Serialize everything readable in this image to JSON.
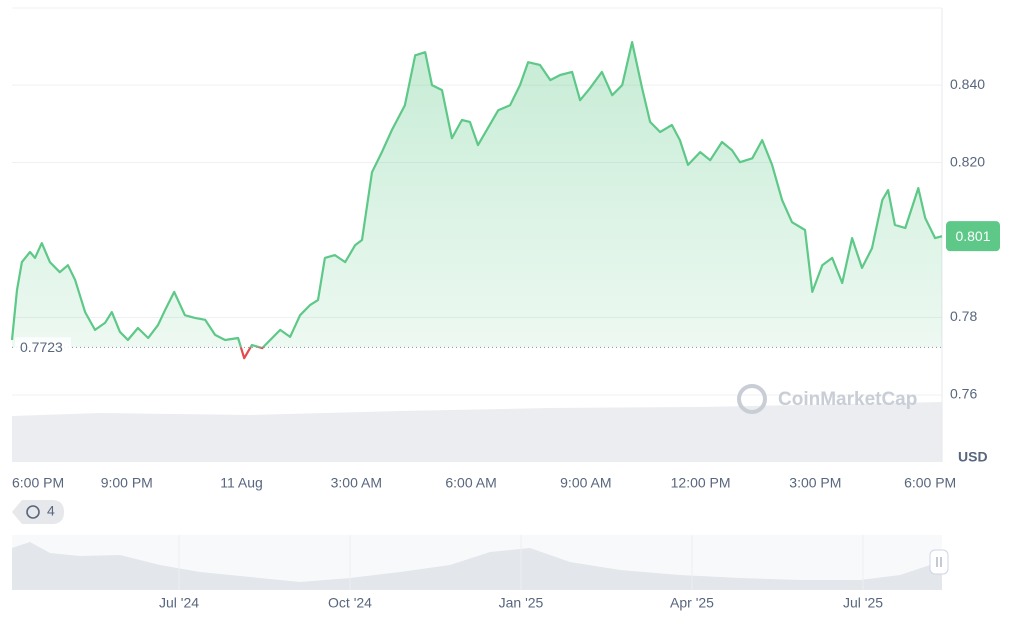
{
  "chart_data": {
    "type": "line",
    "x": [
      0,
      0.13,
      0.26,
      0.47,
      0.6,
      0.78,
      0.99,
      1.25,
      1.46,
      1.65,
      1.91,
      2.17,
      2.43,
      2.61,
      2.82,
      3.03,
      3.29,
      3.56,
      3.82,
      4.0,
      4.24,
      4.52,
      4.78,
      5.05,
      5.31,
      5.57,
      5.91,
      6.07,
      6.27,
      6.54,
      6.75,
      7.01,
      7.27,
      7.53,
      7.79,
      8.0,
      8.18,
      8.44,
      8.71,
      8.97,
      9.15,
      9.41,
      9.67,
      9.93,
      10.27,
      10.54,
      10.8,
      10.98,
      11.24,
      11.5,
      11.76,
      11.97,
      12.18,
      12.44,
      12.71,
      13.02,
      13.28,
      13.49,
      13.8,
      14.07,
      14.33,
      14.64,
      14.85,
      15.11,
      15.42,
      15.69,
      15.95,
      16.21,
      16.47,
      16.68,
      16.94,
      17.25,
      17.46,
      17.67,
      17.99,
      18.25,
      18.56,
      18.82,
      19.03,
      19.35,
      19.61,
      19.87,
      20.13,
      20.39,
      20.73,
      20.92,
      21.18,
      21.44,
      21.7,
      21.96,
      22.22,
      22.48,
      22.75,
      22.9,
      23.08,
      23.35,
      23.69,
      23.87,
      24.13,
      24.31
    ],
    "series": [
      {
        "color": "#5dc887",
        "negative_color": "#e5484d",
        "values": [
          0.7742,
          0.7871,
          0.7943,
          0.7969,
          0.7954,
          0.7992,
          0.7943,
          0.7917,
          0.7935,
          0.7897,
          0.7814,
          0.7768,
          0.7786,
          0.7814,
          0.7763,
          0.7742,
          0.7773,
          0.7747,
          0.7781,
          0.7819,
          0.7866,
          0.7806,
          0.7799,
          0.7794,
          0.7755,
          0.7742,
          0.7747,
          0.7695,
          0.7729,
          0.7721,
          0.7742,
          0.7768,
          0.775,
          0.7806,
          0.7832,
          0.7845,
          0.7954,
          0.7961,
          0.7943,
          0.7987,
          0.8,
          0.8175,
          0.8227,
          0.8284,
          0.8348,
          0.8477,
          0.8485,
          0.84,
          0.8387,
          0.8263,
          0.831,
          0.8305,
          0.8245,
          0.8289,
          0.8335,
          0.8348,
          0.84,
          0.8459,
          0.8452,
          0.8413,
          0.8426,
          0.8434,
          0.8361,
          0.8392,
          0.8434,
          0.8374,
          0.84,
          0.8511,
          0.8392,
          0.8305,
          0.8279,
          0.8297,
          0.8258,
          0.8194,
          0.8227,
          0.8206,
          0.8253,
          0.8232,
          0.8201,
          0.8211,
          0.8258,
          0.8194,
          0.8103,
          0.8046,
          0.8026,
          0.7866,
          0.7935,
          0.7954,
          0.7889,
          0.8005,
          0.7928,
          0.7979,
          0.8103,
          0.8129,
          0.8039,
          0.8031,
          0.8134,
          0.8057,
          0.8005,
          0.801
        ]
      }
    ],
    "xlim": [
      0,
      24.31
    ],
    "xticks": [
      {
        "value": 0,
        "label": "6:00 PM"
      },
      {
        "value": 3,
        "label": "9:00 PM"
      },
      {
        "value": 6,
        "label": "11 Aug"
      },
      {
        "value": 9,
        "label": "3:00 AM"
      },
      {
        "value": 12,
        "label": "6:00 AM"
      },
      {
        "value": 15,
        "label": "9:00 AM"
      },
      {
        "value": 18,
        "label": "12:00 PM"
      },
      {
        "value": 21,
        "label": "3:00 PM"
      },
      {
        "value": 24,
        "label": "6:00 PM"
      }
    ],
    "ylim": [
      0.7427,
      0.8599
    ],
    "yticks": [
      {
        "value": 0.76,
        "label": "0.76"
      },
      {
        "value": 0.78,
        "label": "0.78"
      },
      {
        "value": 0.82,
        "label": "0.820"
      },
      {
        "value": 0.84,
        "label": "0.840"
      }
    ],
    "y_unit": "USD",
    "reference_line": 0.7723,
    "last_price": 0.801,
    "grid": true,
    "watermark": "CoinMarketCap"
  },
  "navigator": {
    "labels": [
      "Jul '24",
      "Oct '24",
      "Jan '25",
      "Apr '25",
      "Jul '25"
    ],
    "history_badge": "4"
  }
}
